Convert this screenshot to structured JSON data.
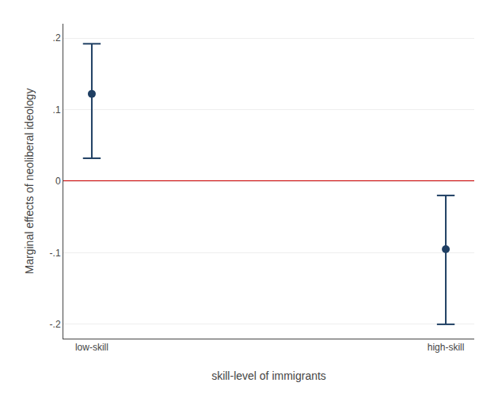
{
  "chart_data": {
    "type": "scatter",
    "categories": [
      "low-skill",
      "high-skill"
    ],
    "values": [
      0.122,
      -0.095
    ],
    "ci_upper": [
      0.192,
      -0.02
    ],
    "ci_lower": [
      0.032,
      -0.2
    ],
    "color": "#1f3f63",
    "marker": "circle",
    "reference_line": {
      "y": 0,
      "color": "#cc0000"
    },
    "xlabel": "skill-level of immigrants",
    "ylabel": "Marginal effects of neoliberal ideology",
    "ylim": [
      -0.22,
      0.22
    ],
    "yticks": [
      {
        "value": -0.2,
        "label": "-.2"
      },
      {
        "value": -0.1,
        "label": "-.1"
      },
      0,
      {
        "value": 0.1,
        "label": ".1"
      },
      {
        "value": 0.2,
        "label": ".2"
      }
    ],
    "grid": true
  }
}
